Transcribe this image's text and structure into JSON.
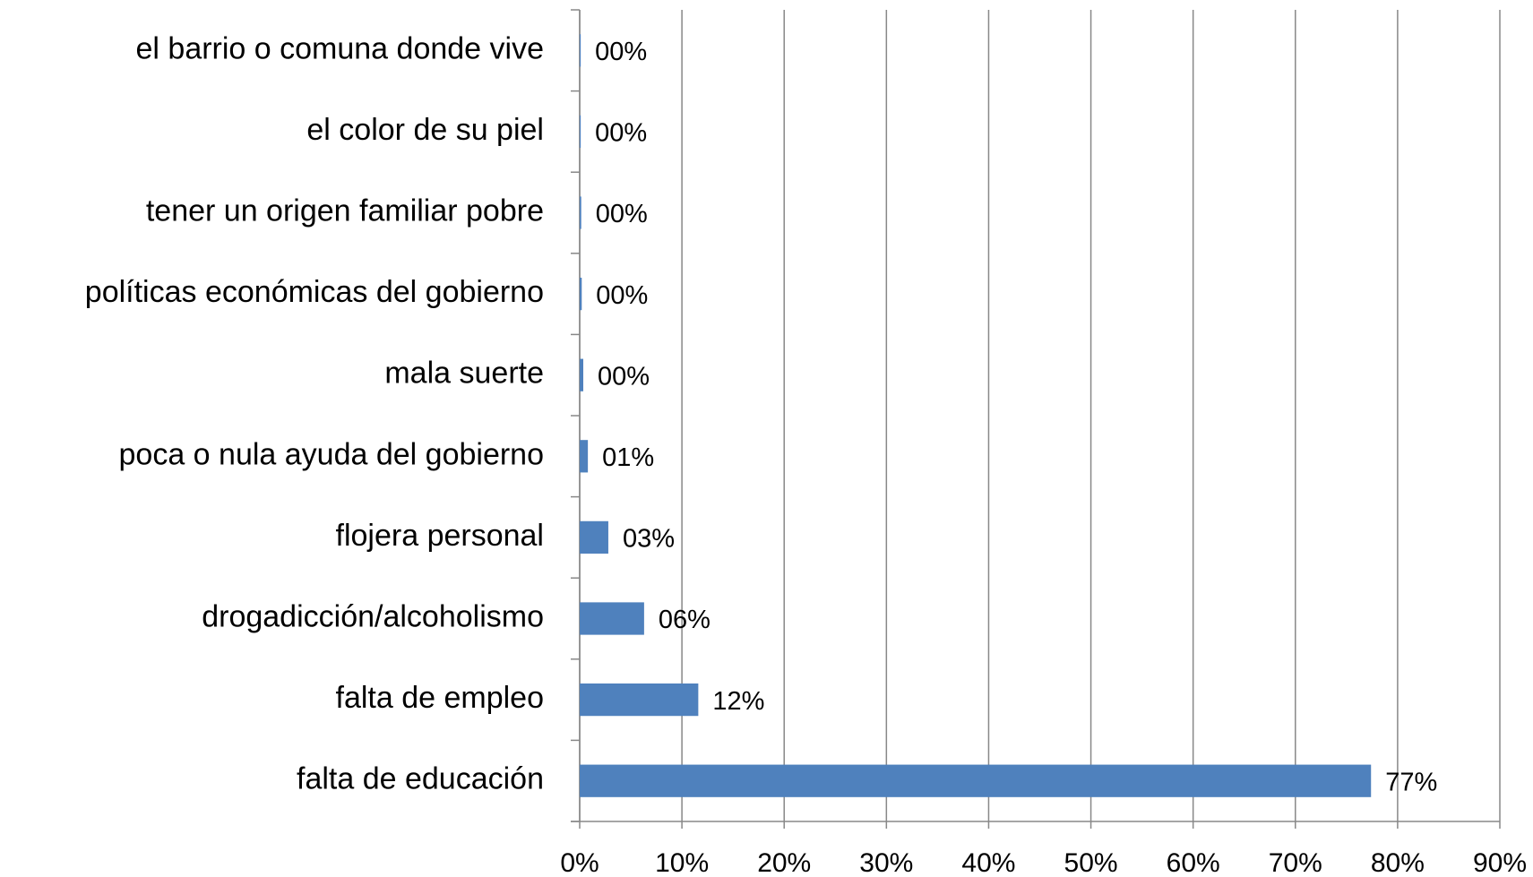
{
  "chart_data": {
    "type": "bar",
    "orientation": "horizontal",
    "categories": [
      "el barrio o comuna donde vive",
      "el color de su piel",
      "tener un origen familiar pobre",
      "políticas económicas del gobierno",
      "mala suerte",
      "poca o nula ayuda del gobierno",
      "flojera personal",
      "drogadicción/alcoholismo",
      "falta de empleo",
      "falta de educación"
    ],
    "values": [
      0.1,
      0.1,
      0.15,
      0.2,
      0.35,
      0.8,
      2.8,
      6.3,
      11.6,
      77.4
    ],
    "value_labels": [
      "00%",
      "00%",
      "00%",
      "00%",
      "00%",
      "01%",
      "03%",
      "06%",
      "12%",
      "77%"
    ],
    "color": "#4f81bd",
    "xlim": [
      0,
      90
    ],
    "xticks": [
      {
        "value": 0,
        "label": "0%"
      },
      {
        "value": 10,
        "label": "10%"
      },
      {
        "value": 20,
        "label": "20%"
      },
      {
        "value": 30,
        "label": "30%"
      },
      {
        "value": 40,
        "label": "40%"
      },
      {
        "value": 50,
        "label": "50%"
      },
      {
        "value": 60,
        "label": "60%"
      },
      {
        "value": 70,
        "label": "70%"
      },
      {
        "value": 80,
        "label": "80%"
      },
      {
        "value": 90,
        "label": "90%"
      }
    ],
    "grid": true
  }
}
